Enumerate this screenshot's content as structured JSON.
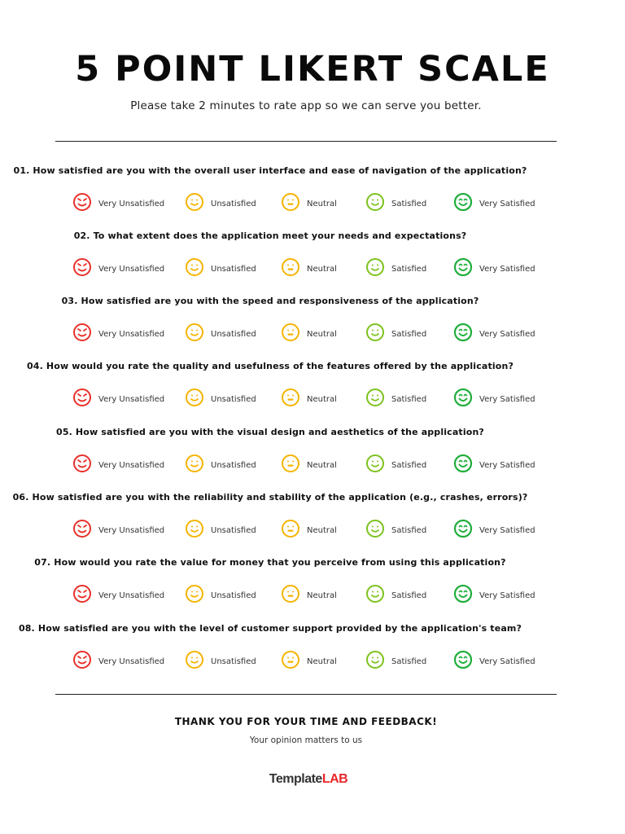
{
  "header": {
    "title": "5 POINT LIKERT SCALE",
    "subtitle": "Please take 2 minutes to rate app so we can serve you better."
  },
  "scale": [
    {
      "label": "Very Unsatisfied",
      "icon": "angry-face-icon",
      "color": "#e8302a"
    },
    {
      "label": "Unsatisfied",
      "icon": "smile-face-icon",
      "color": "#f5b400"
    },
    {
      "label": "Neutral",
      "icon": "neutral-face-icon",
      "color": "#f5b400"
    },
    {
      "label": "Satisfied",
      "icon": "smile-face-icon",
      "color": "#7dc21e"
    },
    {
      "label": "Very Satisfied",
      "icon": "big-smile-face-icon",
      "color": "#1fae3b"
    }
  ],
  "questions": [
    {
      "text": "01. How satisfied are you with the overall user interface and ease of navigation of the application?"
    },
    {
      "text": "02. To what extent does the application meet your needs and expectations?"
    },
    {
      "text": "03. How satisfied are you with the speed and responsiveness of the application?"
    },
    {
      "text": "04. How would you rate the quality and usefulness of the features offered by the application?"
    },
    {
      "text": "05. How satisfied are you with the visual design and aesthetics of the application?"
    },
    {
      "text": "06. How satisfied are you with the reliability and stability of the application (e.g., crashes, errors)?"
    },
    {
      "text": "07. How would you rate the value for money that you perceive from using this application?"
    },
    {
      "text": "08. How satisfied are you with the level of customer support provided by the application's team?"
    }
  ],
  "footer": {
    "thanks": "THANK YOU FOR YOUR TIME AND FEEDBACK!",
    "subtext": "Your opinion matters to us",
    "logo_part1": "Template",
    "logo_part2": "LAB"
  }
}
